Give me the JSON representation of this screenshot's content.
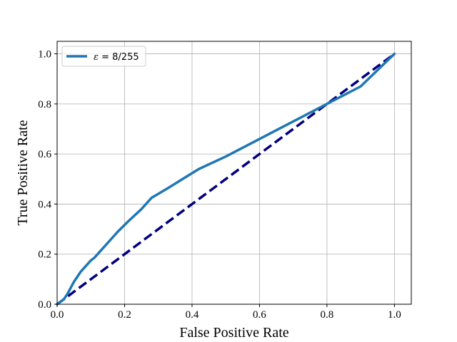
{
  "chart_data": {
    "type": "line",
    "title": "",
    "xlabel": "False Positive Rate",
    "ylabel": "True Positive Rate",
    "xlim": [
      0.0,
      1.05
    ],
    "ylim": [
      0.0,
      1.05
    ],
    "xticks": [
      "0.0",
      "0.2",
      "0.4",
      "0.6",
      "0.8",
      "1.0"
    ],
    "yticks": [
      "0.0",
      "0.2",
      "0.4",
      "0.6",
      "0.8",
      "1.0"
    ],
    "grid": true,
    "legend_position": "top-left",
    "series": [
      {
        "name": "ε = 8/255",
        "name_symbol": "ε",
        "name_rest": " = 8/255",
        "color": "#1f77b4",
        "style": "solid",
        "x": [
          0.0,
          0.01,
          0.02,
          0.03,
          0.04,
          0.05,
          0.06,
          0.07,
          0.08,
          0.09,
          0.1,
          0.11,
          0.12,
          0.14,
          0.16,
          0.18,
          0.21,
          0.25,
          0.28,
          0.33,
          0.42,
          0.5,
          0.6,
          0.7,
          0.8,
          0.9,
          1.0
        ],
        "y": [
          0.0,
          0.01,
          0.02,
          0.04,
          0.065,
          0.09,
          0.11,
          0.13,
          0.145,
          0.16,
          0.175,
          0.185,
          0.2,
          0.23,
          0.26,
          0.29,
          0.33,
          0.38,
          0.425,
          0.465,
          0.54,
          0.59,
          0.66,
          0.73,
          0.8,
          0.87,
          1.0
        ]
      },
      {
        "color": "#000080",
        "style": "dashed",
        "x": [
          0.0,
          1.0
        ],
        "y": [
          0.0,
          1.0
        ]
      }
    ]
  }
}
